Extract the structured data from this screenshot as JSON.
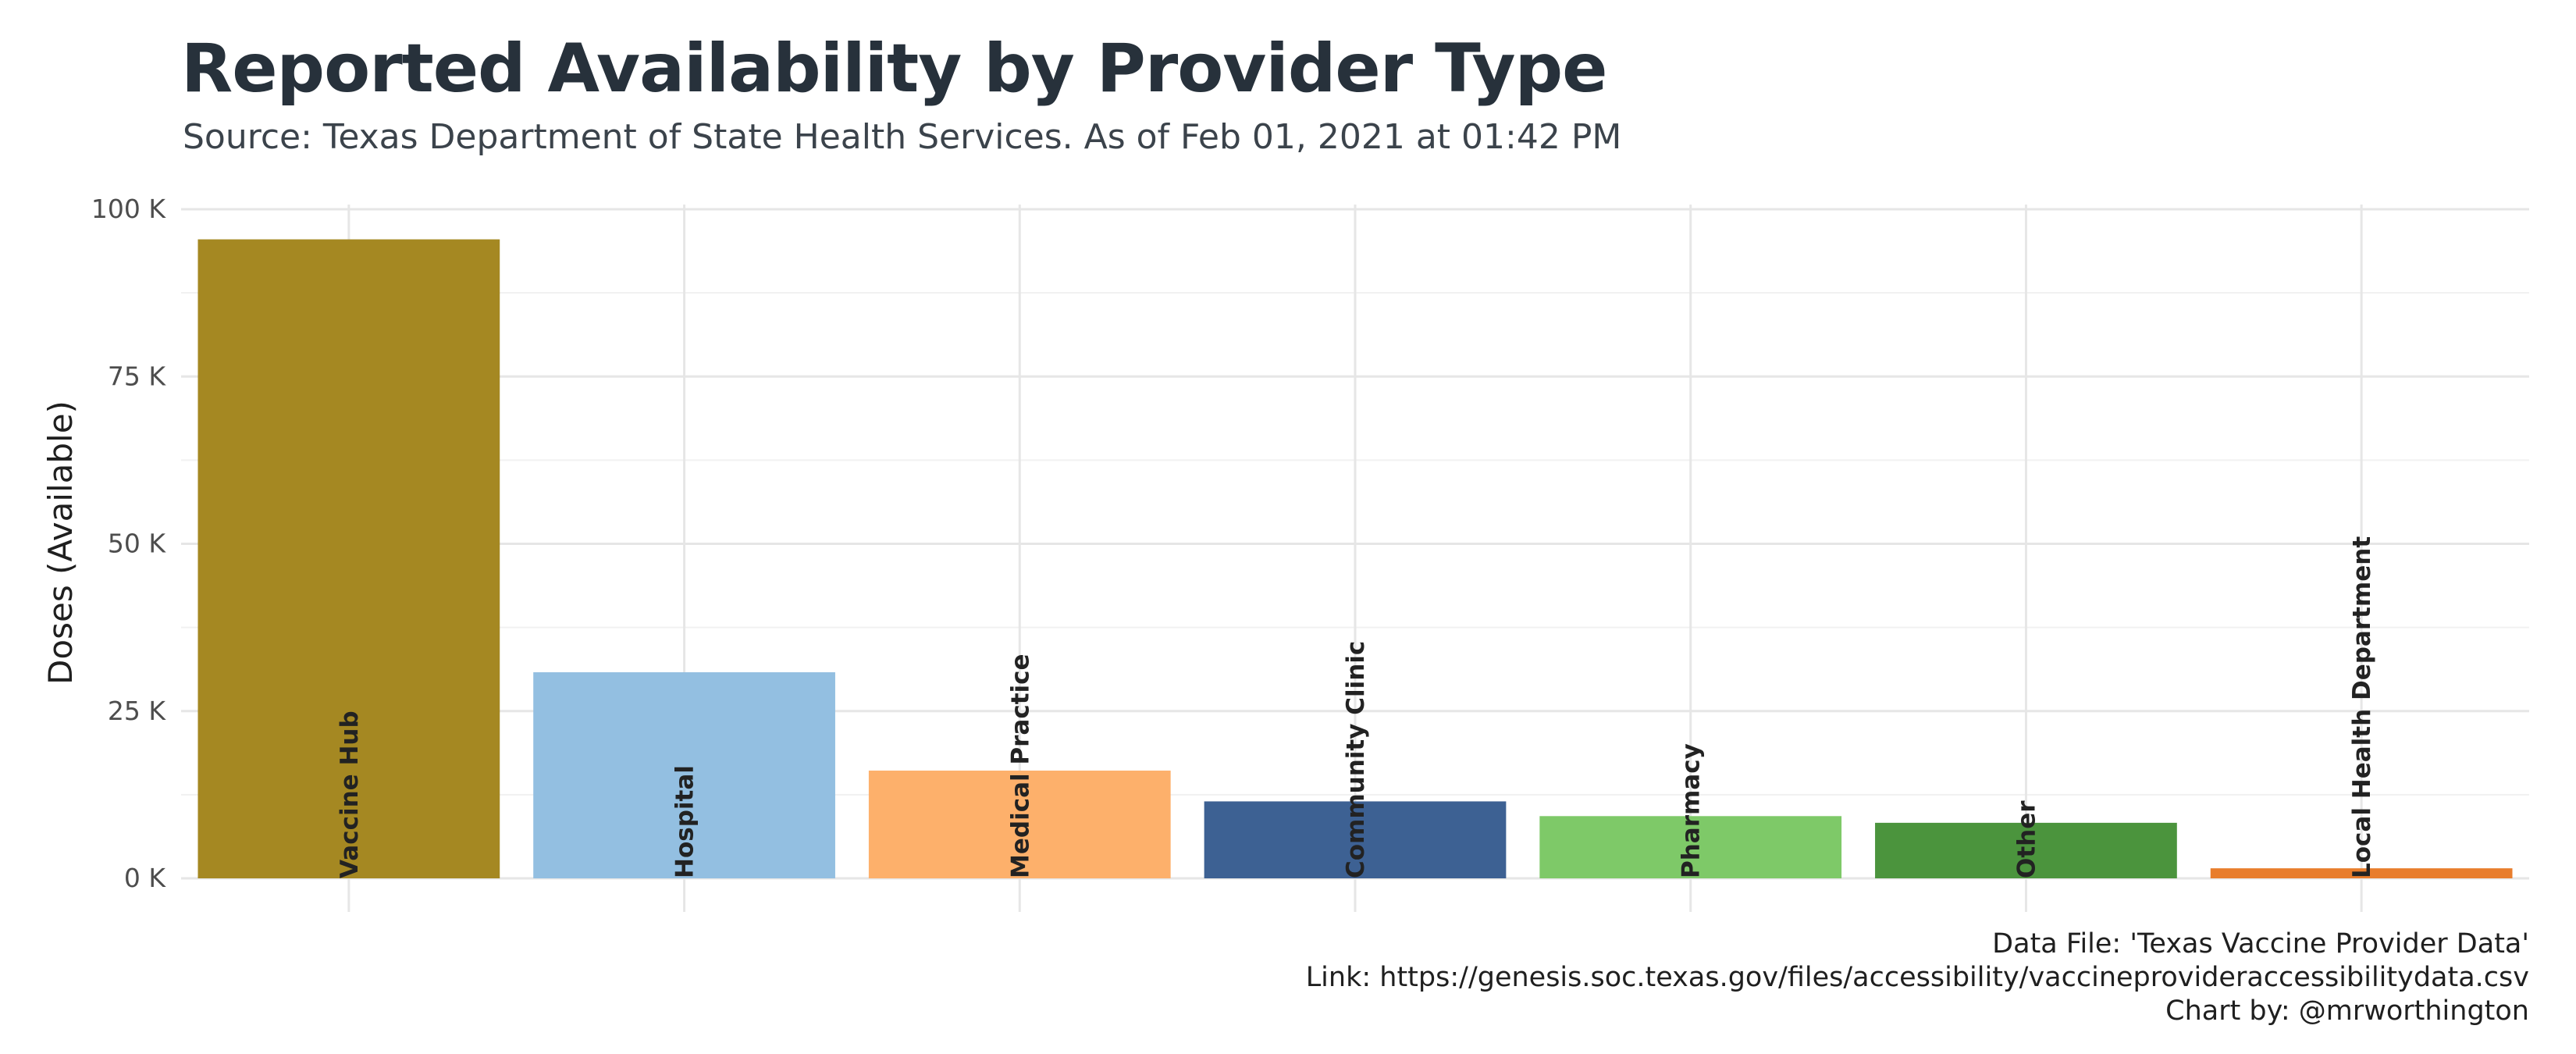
{
  "chart_data": {
    "type": "bar",
    "title": "Reported Availability by Provider Type",
    "subtitle": "Source: Texas Department of State Health Services. As of Feb 01, 2021 at 01:42 PM",
    "ylabel": "Doses (Available)",
    "xlabel": "",
    "ylim": [
      0,
      100000
    ],
    "yticks": [
      {
        "value": 0,
        "label": "0 K"
      },
      {
        "value": 25000,
        "label": "25 K"
      },
      {
        "value": 50000,
        "label": "50 K"
      },
      {
        "value": 75000,
        "label": "75 K"
      },
      {
        "value": 100000,
        "label": "100 K"
      }
    ],
    "grid": true,
    "legend": "none",
    "bars": [
      {
        "category": "Vaccine Hub",
        "value": 95500,
        "color": "#a58822"
      },
      {
        "category": "Hospital",
        "value": 30800,
        "color": "#93bfe1"
      },
      {
        "category": "Medical Practice",
        "value": 16100,
        "color": "#fdb06b"
      },
      {
        "category": "Community Clinic",
        "value": 11500,
        "color": "#3d6193"
      },
      {
        "category": "Pharmacy",
        "value": 9300,
        "color": "#7ec968"
      },
      {
        "category": "Other",
        "value": 8300,
        "color": "#4b943d"
      },
      {
        "category": "Local Health Department",
        "value": 1500,
        "color": "#e87d2c"
      }
    ]
  },
  "caption": {
    "line1": "Data File: 'Texas Vaccine Provider Data'",
    "line2": "Link: https://genesis.soc.texas.gov/files/accessibility/vaccineprovideraccessibilitydata.csv",
    "line3": "Chart by: @mrworthington"
  }
}
